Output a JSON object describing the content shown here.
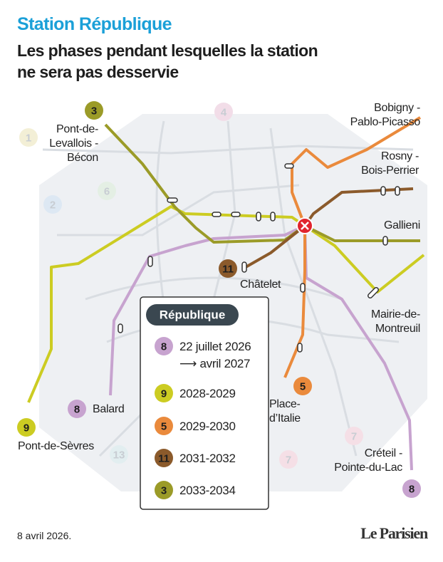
{
  "header": {
    "title": "Station République",
    "subtitle": "Les phases pendant lesquelles la station\nne sera pas desservie"
  },
  "stations": [
    {
      "name": "Pont-de-\nLevallois -\nBécon"
    },
    {
      "name": "Bobigny -\nPablo-Picasso"
    },
    {
      "name": "Rosny -\nBois-Perrier"
    },
    {
      "name": "Gallieni"
    },
    {
      "name": "Châtelet"
    },
    {
      "name": "Mairie-de-\nMontreuil"
    },
    {
      "name": "Place-\nd’Italie"
    },
    {
      "name": "Créteil -\nPointe-du-Lac"
    },
    {
      "name": "Balard"
    },
    {
      "name": "Pont-de-Sèvres"
    }
  ],
  "badges": [
    {
      "line": "3",
      "color": "#9b9b28"
    },
    {
      "line": "11",
      "color": "#8b5a2b"
    },
    {
      "line": "5",
      "color": "#ea8a3c"
    },
    {
      "line": "8",
      "color": "#c7a3cf"
    },
    {
      "line": "9",
      "color": "#cccc22"
    },
    {
      "line": "8",
      "color": "#c7a3cf"
    },
    {
      "line": "1",
      "color": "#f3efd6"
    },
    {
      "line": "2",
      "color": "#dde8f3"
    },
    {
      "line": "4",
      "color": "#f2dde8"
    },
    {
      "line": "6",
      "color": "#e4efe4"
    },
    {
      "line": "13",
      "color": "#e2eef0"
    },
    {
      "line": "7",
      "color": "#f5dfe6"
    },
    {
      "line": "7",
      "color": "#f5dfe6"
    }
  ],
  "legend": {
    "title": "République",
    "items": [
      {
        "line": "8",
        "color": "#c7a3cf",
        "period": "22 juillet 2026\n⟶ avril 2027"
      },
      {
        "line": "9",
        "color": "#cccc22",
        "period": "2028-2029"
      },
      {
        "line": "5",
        "color": "#ea8a3c",
        "period": "2029-2030"
      },
      {
        "line": "11",
        "color": "#8b5a2b",
        "period": "2031-2032"
      },
      {
        "line": "3",
        "color": "#9b9b28",
        "period": "2033-2034"
      }
    ]
  },
  "footer": {
    "date": "8 avril 2026.",
    "logo": "Le Parisien"
  }
}
